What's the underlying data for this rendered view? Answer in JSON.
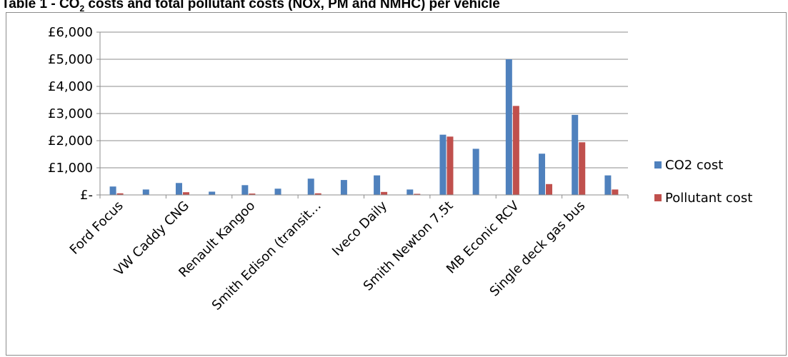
{
  "title_prefix": "Table 1 - CO",
  "title_sub": "2",
  "title_suffix": " costs and total pollutant costs (NOx, PM and NMHC) per vehicle",
  "chart_data": {
    "type": "bar",
    "title": "",
    "xlabel": "",
    "ylabel": "",
    "ylim": [
      0,
      6000
    ],
    "yticks": [
      0,
      1000,
      2000,
      3000,
      4000,
      5000,
      6000
    ],
    "ytick_labels": [
      "£-",
      "£1,000",
      "£2,000",
      "£3,000",
      "£4,000",
      "£5,000",
      "£6,000"
    ],
    "grid": true,
    "legend_position": "right",
    "categories": [
      "Ford Focus",
      "",
      "VW Caddy CNG",
      "",
      "Renault Kangoo",
      "",
      "Smith Edison (transit…",
      "",
      "Iveco Daily",
      "",
      "Smith Newton 7.5t",
      "",
      "MB Econic RCV",
      "",
      "Single deck gas bus",
      ""
    ],
    "series": [
      {
        "name": "CO2 cost",
        "color": "#4f81bd",
        "values": [
          310,
          200,
          440,
          120,
          360,
          230,
          600,
          550,
          720,
          200,
          2220,
          1700,
          5000,
          1520,
          2950,
          720
        ]
      },
      {
        "name": "Pollutant cost",
        "color": "#c0504d",
        "values": [
          60,
          10,
          100,
          10,
          50,
          10,
          60,
          10,
          110,
          40,
          2150,
          0,
          3280,
          400,
          1940,
          200
        ]
      }
    ]
  }
}
